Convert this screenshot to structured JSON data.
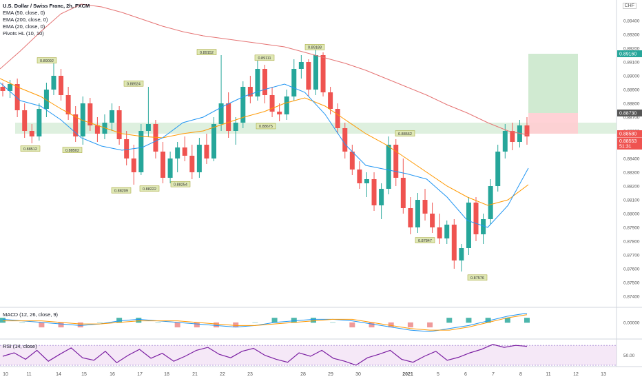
{
  "legend": {
    "title": "U.S. Dollar / Swiss Franc, 2h, FXCM",
    "ema50": "EMA (50, close, 0)",
    "ema200": "EMA (200, close, 0)",
    "ema20": "EMA (20, close, 0)",
    "pivots": "Pivots HL (10, 10)"
  },
  "currency": "CHF",
  "macd_label": "MACD (12, 26, close, 9)",
  "rsi_label": "RSI (14, close)",
  "colors": {
    "up": "#26a69a",
    "down": "#ef5350",
    "ema20": "#2196f3",
    "ema50": "#ff9800",
    "ema200": "#e57373",
    "rsi": "#7b1fa2",
    "zone": "#c8e6c9",
    "pivot_bg": "#dfe8b5"
  },
  "chart_data": {
    "type": "candlestick",
    "ylim": [
      0.8735,
      0.8955
    ],
    "y_ticks": [
      "0.89400",
      "0.89300",
      "0.89200",
      "0.89100",
      "0.89000",
      "0.88900",
      "0.88800",
      "0.88700",
      "0.88600",
      "0.88500",
      "0.88400",
      "0.88300",
      "0.88200",
      "0.88100",
      "0.88000",
      "0.87900",
      "0.87800",
      "0.87700",
      "0.87600",
      "0.87500",
      "0.87400"
    ],
    "x_ticks": [
      "10",
      "11",
      "14",
      "15",
      "16",
      "17",
      "18",
      "21",
      "22",
      "23",
      "28",
      "29",
      "30",
      "2021",
      "5",
      "6",
      "7",
      "8",
      "11",
      "12",
      "13"
    ],
    "price_labels": [
      {
        "text": "0.89160",
        "value": 0.8916,
        "color": "#26a69a"
      },
      {
        "text": "0.88730",
        "value": 0.8873,
        "color": "#555555"
      },
      {
        "text": "0.88580",
        "value": 0.8858,
        "color": "#ef5350"
      },
      {
        "text": "0.88553",
        "value": 0.88553,
        "color": "#ef5350"
      },
      {
        "text": "51:31",
        "value": 0.8853,
        "color": "#ef5350"
      }
    ],
    "pivots": [
      {
        "text": "0.89092",
        "value": 0.89092,
        "pos": "high"
      },
      {
        "text": "0.88924",
        "value": 0.88924,
        "pos": "high"
      },
      {
        "text": "0.89152",
        "value": 0.89152,
        "pos": "high"
      },
      {
        "text": "0.89111",
        "value": 0.89111,
        "pos": "high"
      },
      {
        "text": "0.89188",
        "value": 0.89188,
        "pos": "high"
      },
      {
        "text": "0.88562",
        "value": 0.88562,
        "pos": "high"
      },
      {
        "text": "0.88512",
        "value": 0.88512,
        "pos": "low"
      },
      {
        "text": "0.88502",
        "value": 0.88502,
        "pos": "low"
      },
      {
        "text": "0.88209",
        "value": 0.88209,
        "pos": "low"
      },
      {
        "text": "0.88222",
        "value": 0.88222,
        "pos": "low"
      },
      {
        "text": "0.88254",
        "value": 0.88254,
        "pos": "low"
      },
      {
        "text": "0.88675",
        "value": 0.88675,
        "pos": "low"
      },
      {
        "text": "0.87847",
        "value": 0.87847,
        "pos": "low"
      },
      {
        "text": "0.87576",
        "value": 0.87576,
        "pos": "low"
      }
    ],
    "zone": [
      0.8858,
      0.8866
    ],
    "target": {
      "entry": 0.8858,
      "stop": 0.8873,
      "target": 0.8916
    },
    "series": [
      {
        "name": "EMA 200",
        "values": [
          0.8905,
          0.8918,
          0.8932,
          0.8945,
          0.8952,
          0.895,
          0.8946,
          0.8941,
          0.8936,
          0.8932,
          0.8929,
          0.8927,
          0.8925,
          0.8923,
          0.8921,
          0.8917,
          0.8913,
          0.8909,
          0.8904,
          0.8898,
          0.8892,
          0.8886,
          0.8879,
          0.8873,
          0.8866,
          0.886,
          0.8857
        ]
      },
      {
        "name": "EMA 50",
        "values": [
          0.8898,
          0.8891,
          0.8885,
          0.8876,
          0.8868,
          0.8863,
          0.8858,
          0.8856,
          0.8855,
          0.8858,
          0.886,
          0.8865,
          0.887,
          0.8874,
          0.888,
          0.8884,
          0.8878,
          0.8868,
          0.8858,
          0.885,
          0.884,
          0.883,
          0.882,
          0.8812,
          0.8806,
          0.881,
          0.8821
        ]
      },
      {
        "name": "EMA 20",
        "values": [
          0.8895,
          0.8882,
          0.8878,
          0.8868,
          0.8855,
          0.8849,
          0.8846,
          0.8848,
          0.8855,
          0.8866,
          0.887,
          0.8878,
          0.8885,
          0.889,
          0.8894,
          0.8888,
          0.8872,
          0.885,
          0.8835,
          0.8832,
          0.8829,
          0.8825,
          0.8812,
          0.8795,
          0.879,
          0.8806,
          0.8833
        ]
      }
    ],
    "candles": [
      [
        0.8892,
        0.8895,
        0.8885,
        0.8889
      ],
      [
        0.8889,
        0.8897,
        0.8884,
        0.8894
      ],
      [
        0.8894,
        0.8898,
        0.887,
        0.8875
      ],
      [
        0.8875,
        0.888,
        0.8855,
        0.886
      ],
      [
        0.886,
        0.8865,
        0.8851,
        0.8856
      ],
      [
        0.8856,
        0.888,
        0.8853,
        0.8876
      ],
      [
        0.8876,
        0.8895,
        0.887,
        0.889
      ],
      [
        0.889,
        0.8909,
        0.8886,
        0.89
      ],
      [
        0.89,
        0.8905,
        0.8882,
        0.8886
      ],
      [
        0.8886,
        0.8892,
        0.8868,
        0.8872
      ],
      [
        0.8872,
        0.8878,
        0.8852,
        0.8856
      ],
      [
        0.8856,
        0.8885,
        0.885,
        0.888
      ],
      [
        0.888,
        0.8884,
        0.886,
        0.8864
      ],
      [
        0.8864,
        0.887,
        0.8852,
        0.8858
      ],
      [
        0.8858,
        0.8872,
        0.8854,
        0.8866
      ],
      [
        0.8866,
        0.888,
        0.886,
        0.8875
      ],
      [
        0.8875,
        0.8878,
        0.885,
        0.8854
      ],
      [
        0.8854,
        0.886,
        0.8835,
        0.884
      ],
      [
        0.884,
        0.885,
        0.8821,
        0.883
      ],
      [
        0.883,
        0.8865,
        0.8828,
        0.886
      ],
      [
        0.886,
        0.8892,
        0.8856,
        0.8865
      ],
      [
        0.8865,
        0.8868,
        0.884,
        0.8845
      ],
      [
        0.8845,
        0.8852,
        0.8822,
        0.8826
      ],
      [
        0.8826,
        0.8845,
        0.8822,
        0.884
      ],
      [
        0.884,
        0.8852,
        0.883,
        0.8848
      ],
      [
        0.8848,
        0.8856,
        0.8838,
        0.8842
      ],
      [
        0.8842,
        0.885,
        0.8825,
        0.883
      ],
      [
        0.883,
        0.8855,
        0.8826,
        0.885
      ],
      [
        0.885,
        0.8858,
        0.8836,
        0.884
      ],
      [
        0.884,
        0.887,
        0.8838,
        0.8865
      ],
      [
        0.8865,
        0.8915,
        0.886,
        0.888
      ],
      [
        0.888,
        0.8888,
        0.8855,
        0.886
      ],
      [
        0.886,
        0.887,
        0.885,
        0.8866
      ],
      [
        0.8866,
        0.8896,
        0.8862,
        0.8892
      ],
      [
        0.8892,
        0.89,
        0.888,
        0.8885
      ],
      [
        0.8885,
        0.8911,
        0.8882,
        0.8905
      ],
      [
        0.8905,
        0.8908,
        0.888,
        0.8886
      ],
      [
        0.8886,
        0.8892,
        0.887,
        0.8874
      ],
      [
        0.8874,
        0.888,
        0.8867,
        0.8872
      ],
      [
        0.8872,
        0.889,
        0.8868,
        0.8885
      ],
      [
        0.8885,
        0.8912,
        0.8882,
        0.8905
      ],
      [
        0.8905,
        0.8915,
        0.8898,
        0.891
      ],
      [
        0.891,
        0.8912,
        0.8885,
        0.889
      ],
      [
        0.889,
        0.8919,
        0.8886,
        0.8915
      ],
      [
        0.8915,
        0.8917,
        0.8885,
        0.8888
      ],
      [
        0.8888,
        0.8892,
        0.8872,
        0.8876
      ],
      [
        0.8876,
        0.888,
        0.8858,
        0.8862
      ],
      [
        0.8862,
        0.8866,
        0.884,
        0.8845
      ],
      [
        0.8845,
        0.885,
        0.8828,
        0.8832
      ],
      [
        0.8832,
        0.8838,
        0.8818,
        0.8822
      ],
      [
        0.8822,
        0.883,
        0.8812,
        0.8825
      ],
      [
        0.8825,
        0.883,
        0.8802,
        0.8806
      ],
      [
        0.8806,
        0.8822,
        0.8796,
        0.8818
      ],
      [
        0.8818,
        0.8856,
        0.8814,
        0.885
      ],
      [
        0.885,
        0.8854,
        0.882,
        0.8826
      ],
      [
        0.8826,
        0.884,
        0.88,
        0.8804
      ],
      [
        0.8804,
        0.8812,
        0.8785,
        0.879
      ],
      [
        0.879,
        0.8815,
        0.8786,
        0.881
      ],
      [
        0.881,
        0.8818,
        0.8795,
        0.88
      ],
      [
        0.88,
        0.8808,
        0.8786,
        0.879
      ],
      [
        0.879,
        0.88,
        0.8778,
        0.8782
      ],
      [
        0.8782,
        0.8795,
        0.8778,
        0.8792
      ],
      [
        0.8792,
        0.8796,
        0.876,
        0.8766
      ],
      [
        0.8766,
        0.8778,
        0.8758,
        0.8775
      ],
      [
        0.8775,
        0.8812,
        0.877,
        0.8808
      ],
      [
        0.8808,
        0.8812,
        0.878,
        0.8785
      ],
      [
        0.8785,
        0.88,
        0.8778,
        0.8796
      ],
      [
        0.8796,
        0.8825,
        0.8792,
        0.882
      ],
      [
        0.882,
        0.885,
        0.8816,
        0.8845
      ],
      [
        0.8845,
        0.8865,
        0.884,
        0.886
      ],
      [
        0.886,
        0.8866,
        0.8846,
        0.8852
      ],
      [
        0.8852,
        0.8868,
        0.8848,
        0.8864
      ],
      [
        0.8864,
        0.887,
        0.885,
        0.8856
      ]
    ],
    "macd": {
      "ylim": [
        -0.0009,
        0.0008
      ],
      "y_ticks": [
        "0.00000"
      ],
      "macd": [
        0.0002,
        0.0001,
        0.0,
        -0.0001,
        -0.0002,
        -0.0001,
        0.0001,
        0.0002,
        0.0001,
        0.0,
        -0.0001,
        -0.0002,
        -0.0003,
        -0.0002,
        0.0,
        0.0001,
        0.0002,
        0.0002,
        0.0001,
        -0.0001,
        -0.0003,
        -0.0005,
        -0.0006,
        -0.0004,
        -0.0002,
        0.0001,
        0.0004,
        0.0006
      ],
      "signal": [
        0.0001,
        0.0001,
        0.0001,
        0.0,
        -0.0001,
        -0.0001,
        0.0,
        0.0001,
        0.0001,
        0.0001,
        0.0,
        -0.0001,
        -0.0002,
        -0.0002,
        -0.0001,
        0.0,
        0.0001,
        0.0002,
        0.0002,
        0.0,
        -0.0002,
        -0.0004,
        -0.0005,
        -0.0005,
        -0.0003,
        0.0,
        0.0003,
        0.0005
      ]
    },
    "rsi": {
      "ylim": [
        30,
        80
      ],
      "y_ticks": [
        "50.00"
      ],
      "band": [
        30,
        70
      ],
      "values": [
        48,
        55,
        42,
        60,
        38,
        52,
        65,
        45,
        40,
        58,
        35,
        50,
        62,
        44,
        54,
        38,
        48,
        60,
        66,
        52,
        45,
        58,
        64,
        50,
        42,
        36,
        55,
        48,
        60,
        44,
        38,
        30,
        45,
        52,
        60,
        42,
        36,
        48,
        58,
        40,
        46,
        55,
        62,
        72,
        66,
        70,
        68
      ]
    }
  }
}
